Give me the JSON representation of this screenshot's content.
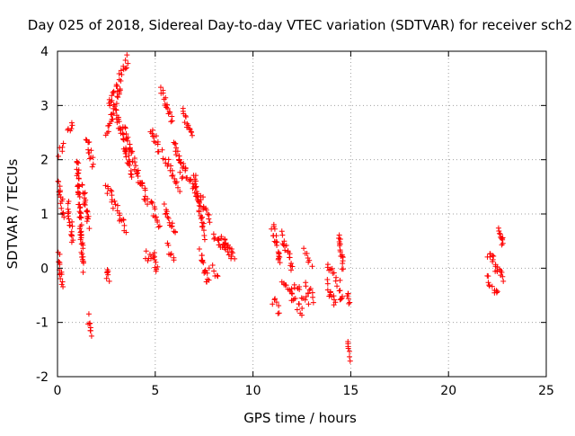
{
  "chart_data": {
    "type": "scatter",
    "title": "Day 025 of 2018, Sidereal Day-to-day VTEC variation (SDTVAR) for receiver sch2",
    "xlabel": "GPS time / hours",
    "ylabel": "SDTVAR / TECUs",
    "xlim": [
      0,
      25
    ],
    "ylim": [
      -2,
      4
    ],
    "xticks": [
      0,
      5,
      10,
      15,
      20,
      25
    ],
    "yticks": [
      -2,
      -1,
      0,
      1,
      2,
      3,
      4
    ],
    "grid": true,
    "marker": "plus",
    "color": "#ff0000",
    "series": [
      {
        "name": "SDTVAR",
        "segments": [
          {
            "x0": 0.0,
            "x1": 0.25,
            "y0": 0.35,
            "y1": -0.3
          },
          {
            "x0": 0.0,
            "x1": 0.3,
            "y0": 1.6,
            "y1": 1.0
          },
          {
            "x0": 0.0,
            "x1": 0.3,
            "y0": 2.05,
            "y1": 2.3
          },
          {
            "x0": 0.5,
            "x1": 0.8,
            "y0": 2.5,
            "y1": 2.7
          },
          {
            "x0": 0.5,
            "x1": 0.8,
            "y0": 1.2,
            "y1": 0.5
          },
          {
            "x0": 1.0,
            "x1": 1.3,
            "y0": 2.0,
            "y1": 0.0
          },
          {
            "x0": 1.3,
            "x1": 1.6,
            "y0": 1.5,
            "y1": 0.8
          },
          {
            "x0": 1.5,
            "x1": 1.8,
            "y0": 2.4,
            "y1": 1.9
          },
          {
            "x0": 1.6,
            "x1": 1.7,
            "y0": -0.9,
            "y1": -1.2
          },
          {
            "x0": 2.5,
            "x1": 2.6,
            "y0": 0.0,
            "y1": -0.25
          },
          {
            "x0": 2.5,
            "x1": 3.2,
            "y0": 2.5,
            "y1": 3.3
          },
          {
            "x0": 2.5,
            "x1": 3.5,
            "y0": 1.5,
            "y1": 0.7
          },
          {
            "x0": 2.6,
            "x1": 3.6,
            "y0": 3.0,
            "y1": 3.85
          },
          {
            "x0": 3.0,
            "x1": 3.8,
            "y0": 2.9,
            "y1": 1.7
          },
          {
            "x0": 3.4,
            "x1": 4.3,
            "y0": 2.6,
            "y1": 1.5
          },
          {
            "x0": 4.3,
            "x1": 4.6,
            "y0": 1.6,
            "y1": 1.2
          },
          {
            "x0": 4.5,
            "x1": 4.8,
            "y0": 0.25,
            "y1": 0.15
          },
          {
            "x0": 4.8,
            "x1": 5.2,
            "y0": 2.6,
            "y1": 2.2
          },
          {
            "x0": 4.8,
            "x1": 5.2,
            "y0": 1.2,
            "y1": 0.8
          },
          {
            "x0": 4.9,
            "x1": 5.1,
            "y0": 0.3,
            "y1": -0.05
          },
          {
            "x0": 5.3,
            "x1": 5.9,
            "y0": 3.3,
            "y1": 2.7
          },
          {
            "x0": 5.4,
            "x1": 6.2,
            "y0": 2.1,
            "y1": 1.5
          },
          {
            "x0": 5.5,
            "x1": 6.0,
            "y0": 1.1,
            "y1": 0.6
          },
          {
            "x0": 5.6,
            "x1": 6.0,
            "y0": 0.4,
            "y1": 0.2
          },
          {
            "x0": 6.0,
            "x1": 6.4,
            "y0": 2.3,
            "y1": 1.7
          },
          {
            "x0": 6.4,
            "x1": 6.9,
            "y0": 2.9,
            "y1": 2.4
          },
          {
            "x0": 6.4,
            "x1": 7.2,
            "y0": 1.9,
            "y1": 1.3
          },
          {
            "x0": 7.0,
            "x1": 7.5,
            "y0": 1.7,
            "y1": 0.6
          },
          {
            "x0": 7.3,
            "x1": 7.8,
            "y0": 1.3,
            "y1": 0.9
          },
          {
            "x0": 7.3,
            "x1": 7.7,
            "y0": 0.3,
            "y1": -0.3
          },
          {
            "x0": 7.8,
            "x1": 8.2,
            "y0": 0.0,
            "y1": -0.1
          },
          {
            "x0": 8.0,
            "x1": 8.5,
            "y0": 0.6,
            "y1": 0.3
          },
          {
            "x0": 8.3,
            "x1": 8.9,
            "y0": 0.6,
            "y1": 0.2
          },
          {
            "x0": 8.5,
            "x1": 9.0,
            "y0": 0.6,
            "y1": 0.2
          },
          {
            "x0": 11.0,
            "x1": 11.4,
            "y0": 0.8,
            "y1": 0.1
          },
          {
            "x0": 11.0,
            "x1": 11.4,
            "y0": -0.6,
            "y1": -0.8
          },
          {
            "x0": 11.5,
            "x1": 12.0,
            "y0": 0.6,
            "y1": 0.0
          },
          {
            "x0": 11.5,
            "x1": 12.5,
            "y0": -0.2,
            "y1": -0.85
          },
          {
            "x0": 12.0,
            "x1": 12.8,
            "y0": -0.3,
            "y1": -0.6
          },
          {
            "x0": 12.6,
            "x1": 13.0,
            "y0": 0.3,
            "y1": 0.1
          },
          {
            "x0": 12.7,
            "x1": 13.1,
            "y0": -0.3,
            "y1": -0.6
          },
          {
            "x0": 13.8,
            "x1": 14.4,
            "y0": 0.1,
            "y1": -0.3
          },
          {
            "x0": 13.8,
            "x1": 14.2,
            "y0": -0.3,
            "y1": -0.7
          },
          {
            "x0": 14.4,
            "x1": 14.6,
            "y0": 0.6,
            "y1": 0.0
          },
          {
            "x0": 14.4,
            "x1": 14.6,
            "y0": -0.45,
            "y1": -0.55
          },
          {
            "x0": 14.8,
            "x1": 15.0,
            "y0": -1.4,
            "y1": -1.65
          },
          {
            "x0": 14.8,
            "x1": 15.0,
            "y0": -0.5,
            "y1": -0.6
          },
          {
            "x0": 22.0,
            "x1": 22.3,
            "y0": 0.25,
            "y1": 0.2
          },
          {
            "x0": 22.0,
            "x1": 22.2,
            "y0": -0.2,
            "y1": -0.3
          },
          {
            "x0": 22.3,
            "x1": 22.5,
            "y0": 0.2,
            "y1": -0.1
          },
          {
            "x0": 22.3,
            "x1": 22.5,
            "y0": -0.35,
            "y1": -0.4
          },
          {
            "x0": 22.6,
            "x1": 22.8,
            "y0": 0.8,
            "y1": 0.4
          },
          {
            "x0": 22.6,
            "x1": 22.8,
            "y0": 0.0,
            "y1": -0.2
          }
        ]
      }
    ]
  }
}
